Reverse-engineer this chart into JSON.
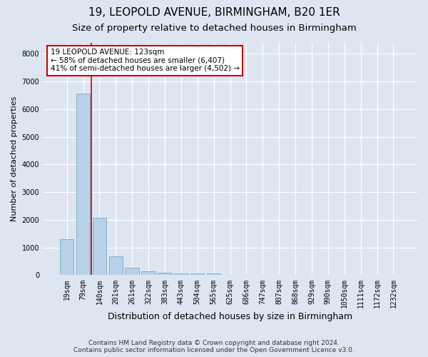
{
  "title_line1": "19, LEOPOLD AVENUE, BIRMINGHAM, B20 1ER",
  "title_line2": "Size of property relative to detached houses in Birmingham",
  "xlabel": "Distribution of detached houses by size in Birmingham",
  "ylabel": "Number of detached properties",
  "categories": [
    "19sqm",
    "79sqm",
    "140sqm",
    "201sqm",
    "261sqm",
    "322sqm",
    "383sqm",
    "443sqm",
    "504sqm",
    "565sqm",
    "625sqm",
    "686sqm",
    "747sqm",
    "807sqm",
    "868sqm",
    "929sqm",
    "990sqm",
    "1050sqm",
    "1111sqm",
    "1172sqm",
    "1232sqm"
  ],
  "values": [
    1300,
    6580,
    2080,
    690,
    270,
    135,
    90,
    55,
    55,
    60,
    0,
    0,
    0,
    0,
    0,
    0,
    0,
    0,
    0,
    0,
    0
  ],
  "bar_color": "#b8d0e8",
  "bar_edge_color": "#7aaac8",
  "property_line_color": "#cc0000",
  "annotation_text": "19 LEOPOLD AVENUE: 123sqm\n← 58% of detached houses are smaller (6,407)\n41% of semi-detached houses are larger (4,502) →",
  "annotation_box_color": "#ffffff",
  "annotation_box_edge_color": "#cc0000",
  "ylim": [
    0,
    8400
  ],
  "yticks": [
    0,
    1000,
    2000,
    3000,
    4000,
    5000,
    6000,
    7000,
    8000
  ],
  "background_color": "#dde6f0",
  "plot_bg_color": "#dde6f0",
  "grid_color": "#ffffff",
  "footer_line1": "Contains HM Land Registry data © Crown copyright and database right 2024.",
  "footer_line2": "Contains public sector information licensed under the Open Government Licence v3.0.",
  "title_fontsize": 11,
  "subtitle_fontsize": 9.5,
  "xlabel_fontsize": 9,
  "ylabel_fontsize": 8,
  "tick_fontsize": 7,
  "footer_fontsize": 6.5,
  "annotation_fontsize": 7.5
}
